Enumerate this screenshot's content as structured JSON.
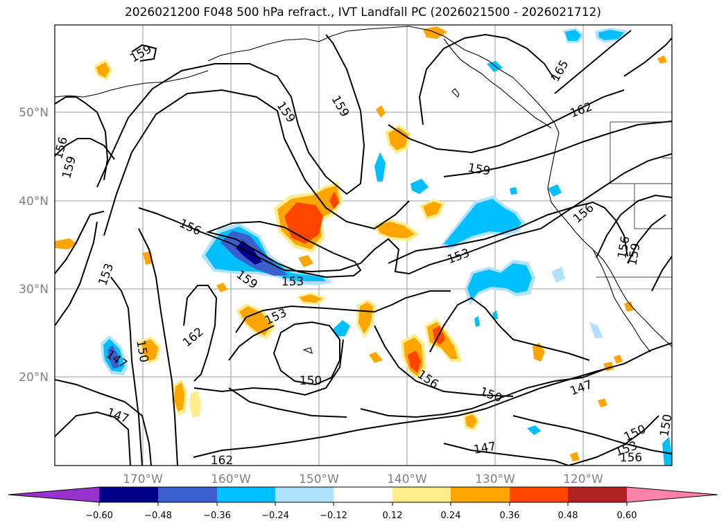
{
  "title": "2026021200 F048 500 hPa refract., IVT Landfall PC (2026021500 - 2026021712)",
  "map": {
    "lat_labels": [
      "50°N",
      "40°N",
      "30°N",
      "20°N"
    ],
    "lon_labels": [
      "170°W",
      "160°W",
      "150°W",
      "140°W",
      "130°W",
      "120°W"
    ],
    "contour_labels": [
      "159",
      "159",
      "159",
      "156",
      "159",
      "165",
      "162",
      "159",
      "156",
      "156",
      "153",
      "159",
      "153",
      "153",
      "156",
      "159",
      "153",
      "150",
      "162",
      "147",
      "150",
      "156",
      "150",
      "147",
      "147",
      "150",
      "153",
      "156",
      "162",
      "147",
      "150"
    ]
  },
  "colorbar": {
    "colors": [
      "#9932cc",
      "#00008b",
      "#3a5fcd",
      "#00bfff",
      "#b0e2ff",
      "#ffffff",
      "#ffec8b",
      "#ffa500",
      "#ff4500",
      "#b22222",
      "#ff82ab"
    ],
    "tick_labels": [
      "−0.60",
      "−0.48",
      "−0.36",
      "−0.24",
      "−0.12",
      "0.12",
      "0.24",
      "0.36",
      "0.48",
      "0.60"
    ]
  }
}
